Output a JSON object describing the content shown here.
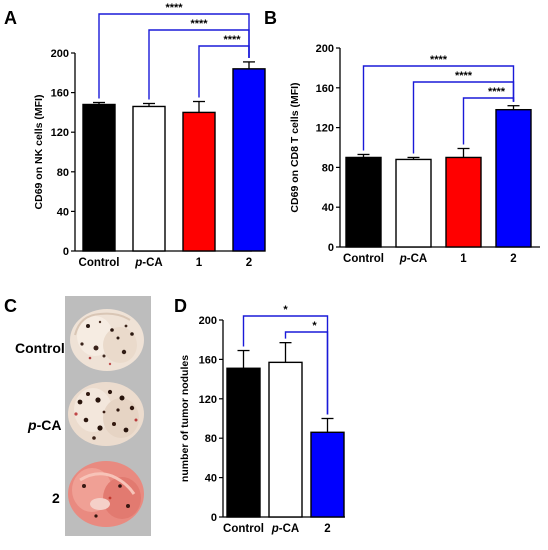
{
  "panels": [
    "A",
    "B",
    "C",
    "D"
  ],
  "colors": {
    "control": "#000000",
    "pca": "#ffffff",
    "compound1": "#ff0000",
    "compound2": "#0000ff",
    "bracket": "#1a1ad8"
  },
  "photo": {
    "labels": [
      "Control",
      "p-CA",
      "2"
    ],
    "description_icons": [
      "lung-control-image",
      "lung-pca-image",
      "lung-2-image"
    ]
  },
  "chart_data": [
    {
      "panel": "A",
      "type": "bar",
      "categories": [
        "Control",
        "p-CA",
        "1",
        "2"
      ],
      "values": [
        148,
        146,
        140,
        184
      ],
      "errors": [
        2,
        3,
        11,
        7
      ],
      "ylabel": "CD69 on NK cells (MFI)",
      "ylim": [
        0,
        200
      ],
      "yticks": [
        0,
        40,
        80,
        120,
        160,
        200
      ],
      "significance": [
        {
          "from": 0,
          "to": 3,
          "label": "****"
        },
        {
          "from": 1,
          "to": 3,
          "label": "****"
        },
        {
          "from": 2,
          "to": 3,
          "label": "****"
        }
      ]
    },
    {
      "panel": "B",
      "type": "bar",
      "categories": [
        "Control",
        "p-CA",
        "1",
        "2"
      ],
      "values": [
        90,
        88,
        90,
        138
      ],
      "errors": [
        3,
        2,
        9,
        4
      ],
      "ylabel": "CD69 on CD8 T cells (MFI)",
      "ylim": [
        0,
        200
      ],
      "yticks": [
        0,
        40,
        80,
        120,
        160,
        200
      ],
      "significance": [
        {
          "from": 0,
          "to": 3,
          "label": "****"
        },
        {
          "from": 1,
          "to": 3,
          "label": "****"
        },
        {
          "from": 2,
          "to": 3,
          "label": "****"
        }
      ]
    },
    {
      "panel": "D",
      "type": "bar",
      "categories": [
        "Control",
        "p-CA",
        "2"
      ],
      "values": [
        151,
        157,
        86
      ],
      "errors": [
        18,
        20,
        14
      ],
      "ylabel": "number of tumor nodules",
      "ylim": [
        0,
        200
      ],
      "yticks": [
        0,
        40,
        80,
        120,
        160,
        200
      ],
      "significance": [
        {
          "from": 0,
          "to": 2,
          "label": "*"
        },
        {
          "from": 1,
          "to": 2,
          "label": "*"
        }
      ]
    }
  ]
}
